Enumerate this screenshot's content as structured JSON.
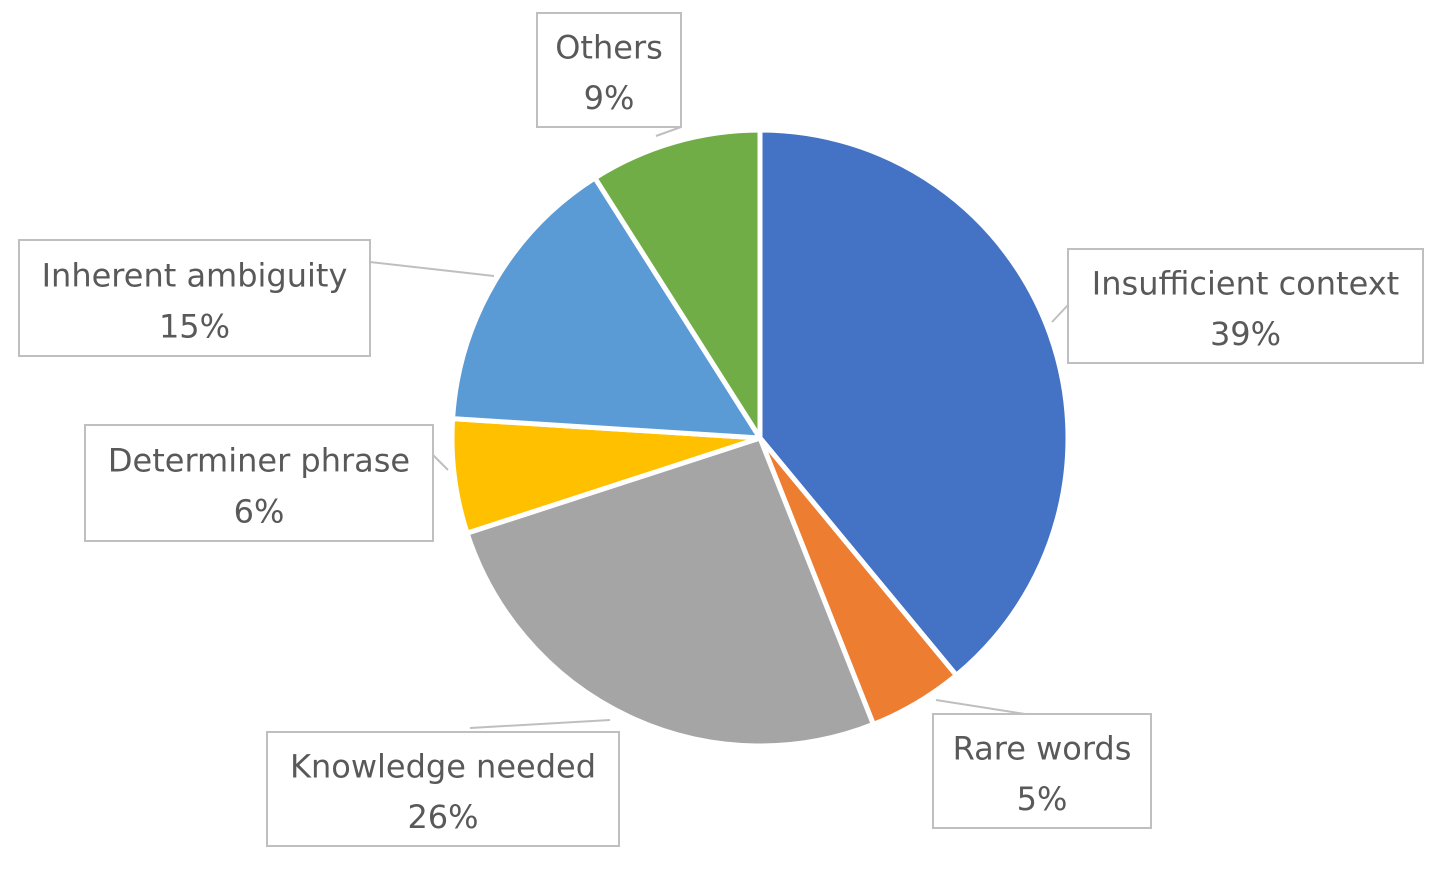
{
  "chart_data": {
    "type": "pie",
    "title": "",
    "slices": [
      {
        "label": "Insufficient context",
        "value": 39,
        "percent_label": "39%",
        "color": "#4472C4"
      },
      {
        "label": "Rare words",
        "value": 5,
        "percent_label": "5%",
        "color": "#ED7D31"
      },
      {
        "label": "Knowledge needed",
        "value": 26,
        "percent_label": "26%",
        "color": "#A5A5A5"
      },
      {
        "label": "Determiner phrase",
        "value": 6,
        "percent_label": "6%",
        "color": "#FFC000"
      },
      {
        "label": "Inherent ambiguity",
        "value": 15,
        "percent_label": "15%",
        "color": "#5B9BD5"
      },
      {
        "label": "Others",
        "value": 9,
        "percent_label": "9%",
        "color": "#70AD47"
      }
    ],
    "start_angle": "12 o'clock",
    "direction": "clockwise",
    "data_labels": "callouts with category name and percentage",
    "legend": "none"
  }
}
